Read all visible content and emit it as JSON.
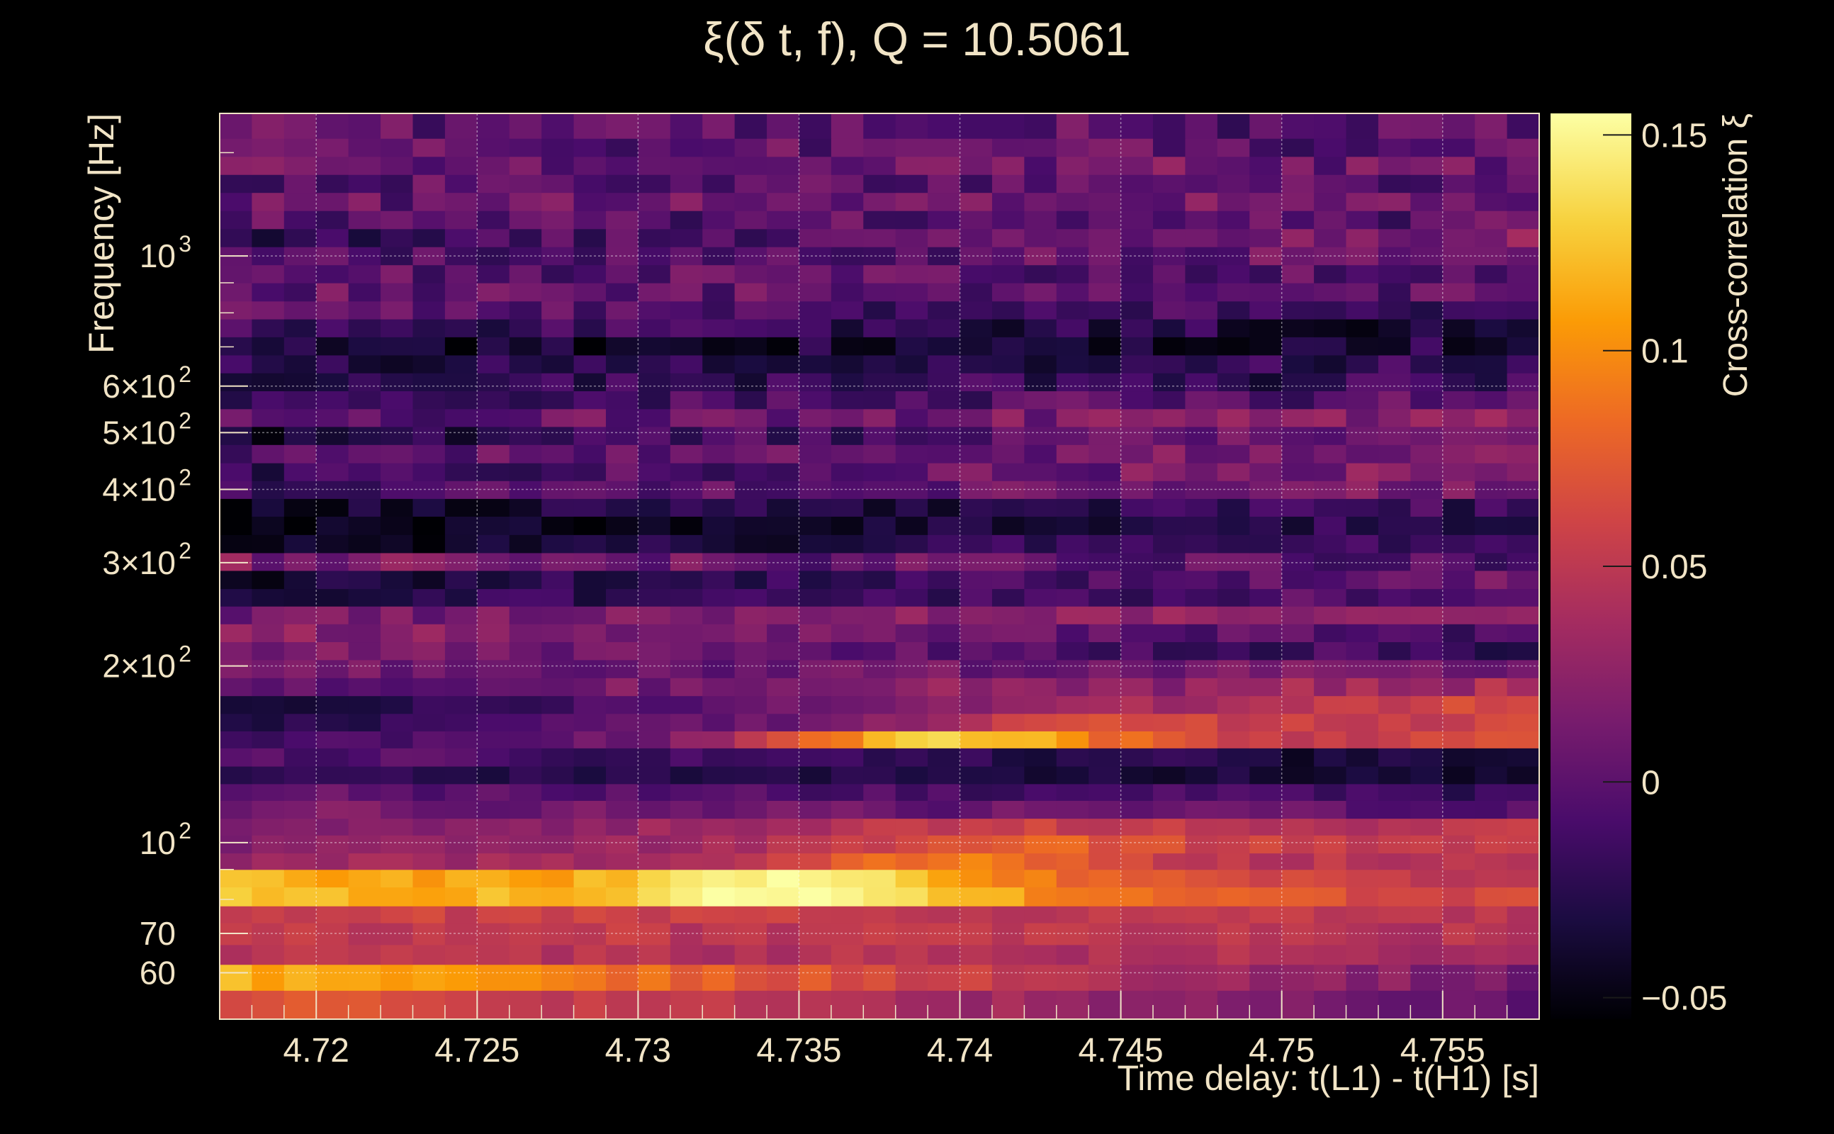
{
  "chart_data": {
    "type": "heatmap",
    "title": "ξ(δ t, f), Q = 10.5061",
    "xlabel": "Time delay: t(L1) - t(H1) [s]",
    "ylabel": "Frequency [Hz]",
    "colorbar_label": "Cross-correlation ξ",
    "xlim": [
      4.717,
      4.758
    ],
    "ylim": [
      50,
      1750
    ],
    "y_scale": "log",
    "grid": true,
    "x_ticks": [
      {
        "value": 4.72,
        "label": "4.72"
      },
      {
        "value": 4.725,
        "label": "4.725"
      },
      {
        "value": 4.73,
        "label": "4.73"
      },
      {
        "value": 4.735,
        "label": "4.735"
      },
      {
        "value": 4.74,
        "label": "4.74"
      },
      {
        "value": 4.745,
        "label": "4.745"
      },
      {
        "value": 4.75,
        "label": "4.75"
      },
      {
        "value": 4.755,
        "label": "4.755"
      }
    ],
    "y_ticks": [
      {
        "value": 60,
        "label": "60",
        "exp": ""
      },
      {
        "value": 70,
        "label": "70",
        "exp": ""
      },
      {
        "value": 100,
        "label": "10",
        "exp": "2"
      },
      {
        "value": 200,
        "label": "2×10",
        "exp": "2"
      },
      {
        "value": 300,
        "label": "3×10",
        "exp": "2"
      },
      {
        "value": 400,
        "label": "4×10",
        "exp": "2"
      },
      {
        "value": 500,
        "label": "5×10",
        "exp": "2"
      },
      {
        "value": 600,
        "label": "6×10",
        "exp": "2"
      },
      {
        "value": 1000,
        "label": "10",
        "exp": "3"
      }
    ],
    "colorbar": {
      "range": [
        -0.055,
        0.155
      ],
      "ticks": [
        {
          "value": 0.15,
          "label": "0.15"
        },
        {
          "value": 0.1,
          "label": "0.1"
        },
        {
          "value": 0.05,
          "label": "0.05"
        },
        {
          "value": 0,
          "label": "0"
        },
        {
          "value": -0.05,
          "label": "−0.05"
        }
      ]
    },
    "colors": [
      "#000004",
      "#1b0c41",
      "#4a0c6b",
      "#781c6d",
      "#a52c60",
      "#cf4446",
      "#ed6925",
      "#fb9b06",
      "#f7d13d",
      "#fcffa4"
    ],
    "band_profiles": [
      {
        "f_low": 50,
        "f_high": 56,
        "left": 0.075,
        "right": 0.005,
        "noise": 0.01
      },
      {
        "f_low": 56,
        "f_high": 62,
        "left": 0.12,
        "right": 0.01,
        "noise": 0.01
      },
      {
        "f_low": 62,
        "f_high": 67,
        "left": 0.05,
        "right": 0.04,
        "noise": 0.01
      },
      {
        "f_low": 67,
        "f_high": 73,
        "left": 0.055,
        "right": 0.045,
        "noise": 0.01
      },
      {
        "f_low": 73,
        "f_high": 78,
        "left": 0.06,
        "right": 0.05,
        "noise": 0.01
      },
      {
        "f_low": 78,
        "f_high": 84,
        "left": 0.13,
        "right": 0.06,
        "noise": 0.01,
        "peak": 0.16,
        "peak_x": 4.735
      },
      {
        "f_low": 84,
        "f_high": 90,
        "left": 0.12,
        "right": 0.05,
        "noise": 0.01,
        "peak": 0.15,
        "peak_x": 4.735
      },
      {
        "f_low": 90,
        "f_high": 96,
        "left": 0.03,
        "right": 0.05,
        "noise": 0.01,
        "peak": 0.09,
        "peak_x": 4.74
      },
      {
        "f_low": 96,
        "f_high": 103,
        "left": 0.02,
        "right": 0.06,
        "noise": 0.01,
        "peak": 0.08,
        "peak_x": 4.742
      },
      {
        "f_low": 103,
        "f_high": 110,
        "left": 0.02,
        "right": 0.05,
        "noise": 0.01,
        "peak": 0.06,
        "peak_x": 4.742
      },
      {
        "f_low": 110,
        "f_high": 118,
        "left": 0.015,
        "right": 0.0,
        "noise": 0.012
      },
      {
        "f_low": 118,
        "f_high": 126,
        "left": 0.005,
        "right": -0.02,
        "noise": 0.012
      },
      {
        "f_low": 126,
        "f_high": 135,
        "left": -0.02,
        "right": -0.04,
        "noise": 0.01
      },
      {
        "f_low": 135,
        "f_high": 145,
        "left": 0.0,
        "right": -0.04,
        "noise": 0.012
      },
      {
        "f_low": 145,
        "f_high": 155,
        "left": -0.02,
        "right": 0.065,
        "noise": 0.012,
        "peak": 0.13,
        "peak_x": 4.74
      },
      {
        "f_low": 155,
        "f_high": 166,
        "left": -0.035,
        "right": 0.07,
        "noise": 0.012,
        "peak": 0.06,
        "peak_x": 4.745
      },
      {
        "f_low": 166,
        "f_high": 178,
        "left": -0.04,
        "right": 0.07,
        "noise": 0.01
      },
      {
        "f_low": 178,
        "f_high": 191,
        "left": 0.0,
        "right": 0.04,
        "noise": 0.015
      },
      {
        "f_low": 191,
        "f_high": 205,
        "left": 0.01,
        "right": 0.01,
        "noise": 0.015
      },
      {
        "f_low": 205,
        "f_high": 220,
        "left": 0.02,
        "right": -0.02,
        "noise": 0.015
      },
      {
        "f_low": 220,
        "f_high": 236,
        "left": 0.025,
        "right": -0.01,
        "noise": 0.015
      },
      {
        "f_low": 236,
        "f_high": 253,
        "left": 0.01,
        "right": 0.03,
        "noise": 0.015
      },
      {
        "f_low": 253,
        "f_high": 271,
        "left": -0.03,
        "right": 0.0,
        "noise": 0.015
      },
      {
        "f_low": 271,
        "f_high": 291,
        "left": -0.04,
        "right": 0.01,
        "noise": 0.015
      },
      {
        "f_low": 291,
        "f_high": 312,
        "left": 0.02,
        "right": -0.01,
        "noise": 0.02
      },
      {
        "f_low": 312,
        "f_high": 335,
        "left": -0.045,
        "right": -0.01,
        "noise": 0.015
      },
      {
        "f_low": 335,
        "f_high": 360,
        "left": -0.05,
        "right": -0.02,
        "noise": 0.015
      },
      {
        "f_low": 360,
        "f_high": 386,
        "left": -0.045,
        "right": -0.015,
        "noise": 0.02
      },
      {
        "f_low": 386,
        "f_high": 414,
        "left": -0.01,
        "right": 0.02,
        "noise": 0.02
      },
      {
        "f_low": 414,
        "f_high": 444,
        "left": -0.02,
        "right": 0.025,
        "noise": 0.02
      },
      {
        "f_low": 444,
        "f_high": 477,
        "left": 0.0,
        "right": 0.02,
        "noise": 0.02
      },
      {
        "f_low": 477,
        "f_high": 512,
        "left": -0.035,
        "right": 0.02,
        "noise": 0.02
      },
      {
        "f_low": 512,
        "f_high": 549,
        "left": 0.0,
        "right": 0.02,
        "noise": 0.02
      },
      {
        "f_low": 549,
        "f_high": 589,
        "left": -0.01,
        "right": 0.0,
        "noise": 0.02
      },
      {
        "f_low": 589,
        "f_high": 632,
        "left": -0.02,
        "right": -0.02,
        "noise": 0.02
      },
      {
        "f_low": 632,
        "f_high": 678,
        "left": -0.025,
        "right": -0.02,
        "noise": 0.02
      },
      {
        "f_low": 678,
        "f_high": 728,
        "left": -0.04,
        "right": -0.03,
        "noise": 0.02
      },
      {
        "f_low": 728,
        "f_high": 781,
        "left": -0.01,
        "right": -0.035,
        "noise": 0.02
      },
      {
        "f_low": 781,
        "f_high": 838,
        "left": 0.0,
        "right": -0.02,
        "noise": 0.02
      },
      {
        "f_low": 838,
        "f_high": 900,
        "left": 0.005,
        "right": 0.0,
        "noise": 0.02
      },
      {
        "f_low": 900,
        "f_high": 966,
        "left": 0.0,
        "right": 0.0,
        "noise": 0.02
      },
      {
        "f_low": 966,
        "f_high": 1037,
        "left": -0.01,
        "right": 0.01,
        "noise": 0.02
      },
      {
        "f_low": 1037,
        "f_high": 1113,
        "left": -0.02,
        "right": 0.02,
        "noise": 0.02
      },
      {
        "f_low": 1113,
        "f_high": 1195,
        "left": 0.0,
        "right": 0.0,
        "noise": 0.022
      },
      {
        "f_low": 1195,
        "f_high": 1283,
        "left": 0.005,
        "right": 0.01,
        "noise": 0.022
      },
      {
        "f_low": 1283,
        "f_high": 1377,
        "left": 0.0,
        "right": 0.0,
        "noise": 0.022
      },
      {
        "f_low": 1377,
        "f_high": 1478,
        "left": 0.01,
        "right": 0.01,
        "noise": 0.022
      },
      {
        "f_low": 1478,
        "f_high": 1587,
        "left": 0.005,
        "right": 0.0,
        "noise": 0.022
      },
      {
        "f_low": 1587,
        "f_high": 1750,
        "left": 0.0,
        "right": 0.0,
        "noise": 0.022
      }
    ],
    "n_time_bins": 41
  }
}
